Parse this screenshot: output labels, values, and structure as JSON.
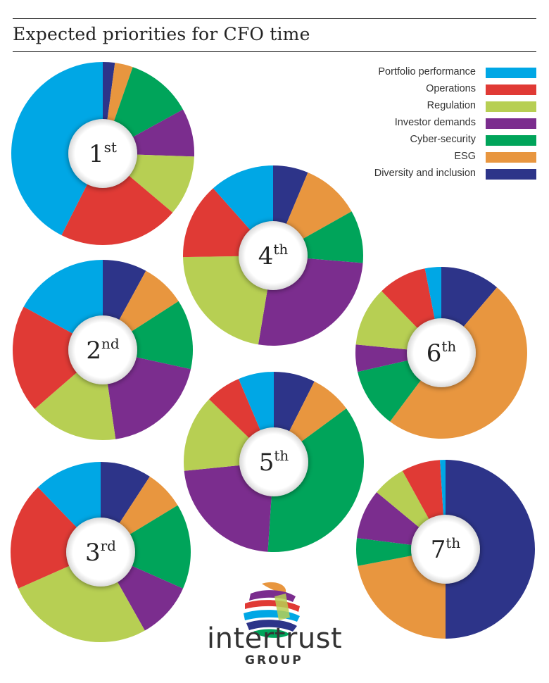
{
  "header": {
    "title": "Expected priorities for CFO time"
  },
  "brand": {
    "name": "intertrust",
    "sub": "GROUP"
  },
  "chart_data": {
    "type": "pie",
    "title": "Expected priorities for CFO time",
    "legend": "top-right",
    "series_names": [
      "Portfolio performance",
      "Operations",
      "Regulation",
      "Investor demands",
      "Cyber-security",
      "ESG",
      "Diversity and inclusion"
    ],
    "colors": [
      "#00a7e5",
      "#e03a35",
      "#b7cf53",
      "#7b2d8e",
      "#00a45a",
      "#e8963f",
      "#2d3489"
    ],
    "charts": [
      {
        "rank": "1",
        "suffix": "st",
        "values": {
          "Portfolio performance": 40,
          "Operations": 20,
          "Regulation": 10,
          "Investor demands": 8,
          "Cyber-security": 11,
          "ESG": 3,
          "Diversity and inclusion": 2
        }
      },
      {
        "rank": "2",
        "suffix": "nd",
        "values": {
          "Portfolio performance": 15,
          "Operations": 17,
          "Regulation": 14,
          "Investor demands": 17,
          "Cyber-security": 11,
          "ESG": 7,
          "Diversity and inclusion": 7
        }
      },
      {
        "rank": "3",
        "suffix": "rd",
        "values": {
          "Portfolio performance": 12,
          "Operations": 19,
          "Regulation": 26,
          "Investor demands": 10,
          "Cyber-security": 15,
          "ESG": 7,
          "Diversity and inclusion": 9
        }
      },
      {
        "rank": "4",
        "suffix": "th",
        "values": {
          "Portfolio performance": 11,
          "Operations": 13,
          "Regulation": 21,
          "Investor demands": 25,
          "Cyber-security": 9,
          "ESG": 10,
          "Diversity and inclusion": 6
        }
      },
      {
        "rank": "5",
        "suffix": "th",
        "values": {
          "Portfolio performance": 6,
          "Operations": 6,
          "Regulation": 13,
          "Investor demands": 21,
          "Cyber-security": 34,
          "ESG": 7,
          "Diversity and inclusion": 7
        }
      },
      {
        "rank": "6",
        "suffix": "th",
        "values": {
          "Portfolio performance": 3,
          "Operations": 9,
          "Regulation": 11,
          "Investor demands": 5,
          "Cyber-security": 11,
          "ESG": 48,
          "Diversity and inclusion": 11
        }
      },
      {
        "rank": "7",
        "suffix": "th",
        "values": {
          "Portfolio performance": 1,
          "Operations": 7,
          "Regulation": 6,
          "Investor demands": 9,
          "Cyber-security": 5,
          "ESG": 22,
          "Diversity and inclusion": 50
        }
      }
    ]
  }
}
